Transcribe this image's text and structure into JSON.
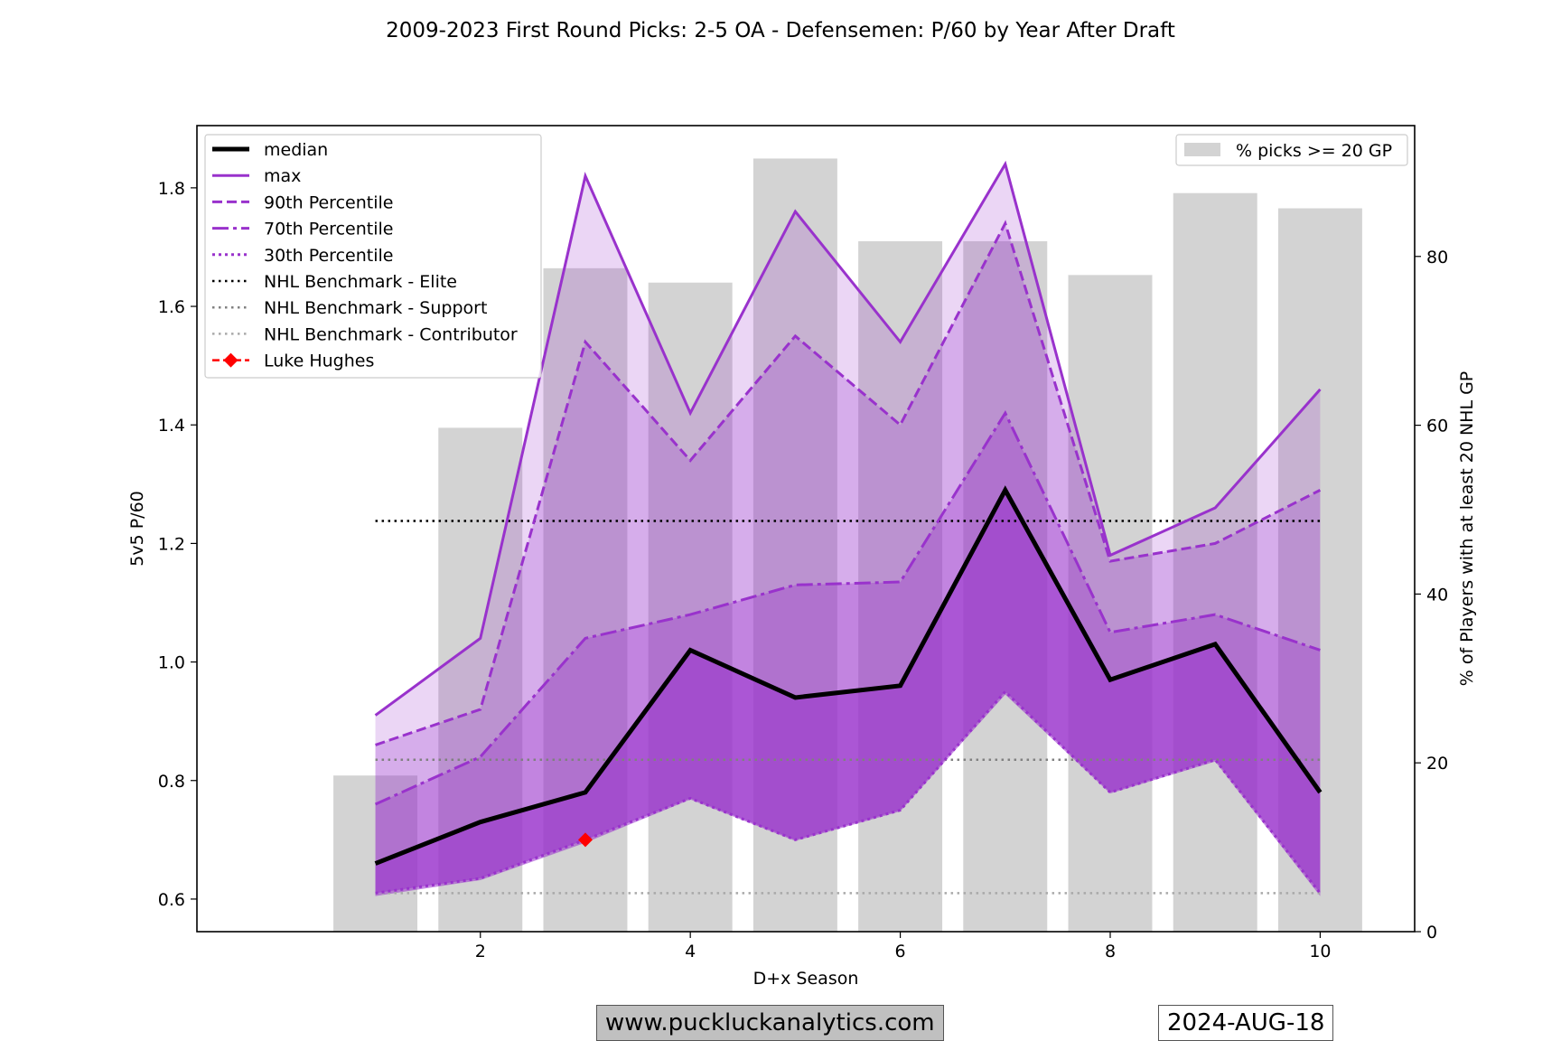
{
  "chart_data": {
    "type": "line",
    "title": "2009-2023 First Round Picks: 2-5 OA - Defensemen: P/60 by Year After Draft",
    "xlabel": "D+x Season",
    "ylabel": "5v5 P/60",
    "ylabel_right": "% of Players with at least 20 NHL GP",
    "x": [
      1,
      2,
      3,
      4,
      5,
      6,
      7,
      8,
      9,
      10
    ],
    "xlim": [
      -0.7,
      10.9
    ],
    "ylim": [
      0.545,
      1.905
    ],
    "y2lim": [
      0,
      95.5
    ],
    "xticks": [
      2,
      4,
      6,
      8,
      10
    ],
    "yticks": [
      0.6,
      0.8,
      1.0,
      1.2,
      1.4,
      1.6,
      1.8
    ],
    "y2ticks": [
      0,
      20,
      40,
      60,
      80
    ],
    "series": [
      {
        "key": "max",
        "name": "max",
        "values": [
          0.91,
          1.04,
          1.82,
          1.42,
          1.76,
          1.54,
          1.84,
          1.18,
          1.26,
          1.46
        ]
      },
      {
        "key": "p90",
        "name": "90th Percentile",
        "values": [
          0.86,
          0.92,
          1.54,
          1.34,
          1.55,
          1.4,
          1.74,
          1.17,
          1.2,
          1.29
        ]
      },
      {
        "key": "p70",
        "name": "70th Percentile",
        "values": [
          0.76,
          0.84,
          1.04,
          1.08,
          1.13,
          1.135,
          1.42,
          1.05,
          1.08,
          1.02
        ]
      },
      {
        "key": "p30",
        "name": "30th Percentile",
        "values": [
          0.61,
          0.635,
          0.7,
          0.77,
          0.7,
          0.75,
          0.95,
          0.78,
          0.835,
          0.61
        ]
      },
      {
        "key": "min",
        "name": "min",
        "values": [
          0.605,
          0.632,
          0.695,
          0.768,
          0.698,
          0.748,
          0.945,
          0.778,
          0.832,
          0.605
        ]
      },
      {
        "key": "median",
        "name": "median",
        "values": [
          0.66,
          0.73,
          0.78,
          1.02,
          0.94,
          0.96,
          1.29,
          0.97,
          1.03,
          0.78
        ]
      }
    ],
    "bars": {
      "name": "% picks >= 20 GP",
      "values": [
        18.5,
        59.7,
        78.6,
        76.9,
        91.6,
        81.8,
        81.8,
        77.8,
        87.5,
        85.7
      ]
    },
    "benchmarks": [
      {
        "name": "NHL Benchmark - Elite",
        "value": 1.238
      },
      {
        "name": "NHL Benchmark - Support",
        "value": 0.835
      },
      {
        "name": "NHL Benchmark - Contributor",
        "value": 0.61
      }
    ],
    "player": {
      "name": "Luke Hughes",
      "x": [
        3
      ],
      "y": [
        0.7
      ]
    },
    "legend": [
      "median",
      "max",
      "90th Percentile",
      "70th Percentile",
      "30th Percentile",
      "NHL Benchmark - Elite",
      "NHL Benchmark - Support",
      "NHL Benchmark - Contributor",
      "Luke Hughes"
    ],
    "legend_right": "% picks >= 20 GP",
    "colors": {
      "median": "#000000",
      "purple": "#9932cc",
      "bars": "#d3d3d3",
      "elite": "#000000",
      "support": "#808080",
      "contributor": "#a9a9a9",
      "player": "#ff0000"
    }
  },
  "footer": {
    "website": "www.puckluckanalytics.com",
    "date": "2024-AUG-18"
  }
}
